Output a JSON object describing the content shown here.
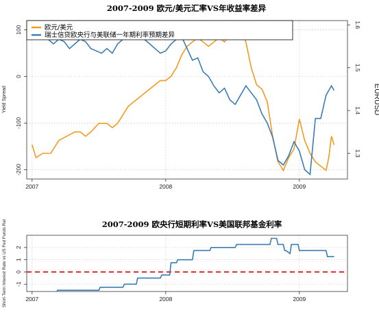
{
  "chart_data": [
    {
      "type": "line",
      "title": "2007-2009 欧元/美元汇率VS年收益率差异",
      "ylabel_left": "Yield Spread",
      "ylabel_right": "EURUSD",
      "x_ticks": [
        "2007",
        "2008",
        "2009"
      ],
      "y_left_ticks": [
        "-200",
        "-100",
        "0",
        "100"
      ],
      "y_right_ticks": [
        "1.3",
        "1.4",
        "1.5",
        "1.6"
      ],
      "ylim_left": [
        -220,
        120
      ],
      "ylim_right": [
        1.24,
        1.61
      ],
      "grid": true,
      "legend_position": "top-left",
      "colors": {
        "eurusd": "#f29a1e",
        "spread": "#3a7bb5"
      },
      "series": [
        {
          "name": "欧元/美元",
          "axis": "right",
          "x": [
            2007.0,
            2007.03,
            2007.08,
            2007.14,
            2007.2,
            2007.26,
            2007.32,
            2007.36,
            2007.4,
            2007.44,
            2007.5,
            2007.56,
            2007.6,
            2007.64,
            2007.68,
            2007.72,
            2007.76,
            2007.8,
            2007.84,
            2007.88,
            2007.92,
            2007.96,
            2008.0,
            2008.04,
            2008.08,
            2008.12,
            2008.16,
            2008.2,
            2008.24,
            2008.28,
            2008.32,
            2008.36,
            2008.4,
            2008.44,
            2008.48,
            2008.52,
            2008.56,
            2008.6,
            2008.64,
            2008.68,
            2008.72,
            2008.76,
            2008.8,
            2008.84,
            2008.88,
            2008.92,
            2008.96,
            2009.0,
            2009.04,
            2009.08,
            2009.12,
            2009.16,
            2009.2,
            2009.22,
            2009.24,
            2009.26
          ],
          "values": [
            1.32,
            1.29,
            1.3,
            1.3,
            1.33,
            1.34,
            1.35,
            1.35,
            1.34,
            1.35,
            1.37,
            1.37,
            1.36,
            1.37,
            1.39,
            1.41,
            1.42,
            1.43,
            1.44,
            1.45,
            1.46,
            1.47,
            1.47,
            1.48,
            1.5,
            1.53,
            1.55,
            1.56,
            1.57,
            1.56,
            1.55,
            1.56,
            1.57,
            1.56,
            1.58,
            1.59,
            1.59,
            1.56,
            1.5,
            1.46,
            1.45,
            1.42,
            1.34,
            1.28,
            1.26,
            1.29,
            1.31,
            1.38,
            1.33,
            1.3,
            1.28,
            1.27,
            1.26,
            1.29,
            1.34,
            1.32
          ]
        },
        {
          "name": "瑞士信贷欧央行与美联储一年期利率预期差异",
          "axis": "left",
          "x": [
            2007.0,
            2007.04,
            2007.08,
            2007.12,
            2007.16,
            2007.2,
            2007.24,
            2007.28,
            2007.32,
            2007.36,
            2007.4,
            2007.44,
            2007.48,
            2007.52,
            2007.56,
            2007.6,
            2007.64,
            2007.68,
            2007.72,
            2007.76,
            2007.8,
            2007.84,
            2007.88,
            2007.92,
            2007.96,
            2008.0,
            2008.04,
            2008.08,
            2008.12,
            2008.16,
            2008.2,
            2008.24,
            2008.28,
            2008.32,
            2008.36,
            2008.4,
            2008.44,
            2008.48,
            2008.52,
            2008.56,
            2008.6,
            2008.64,
            2008.68,
            2008.72,
            2008.76,
            2008.8,
            2008.84,
            2008.88,
            2008.92,
            2008.96,
            2009.0,
            2009.04,
            2009.08,
            2009.12,
            2009.16,
            2009.2,
            2009.24,
            2009.26
          ],
          "values": [
            100,
            85,
            80,
            80,
            70,
            80,
            75,
            60,
            70,
            80,
            75,
            60,
            55,
            50,
            60,
            50,
            70,
            80,
            95,
            105,
            100,
            80,
            70,
            60,
            50,
            55,
            70,
            80,
            85,
            60,
            35,
            40,
            10,
            0,
            -20,
            -35,
            -25,
            -50,
            -60,
            -40,
            -20,
            -35,
            -50,
            -80,
            -100,
            -130,
            -180,
            -190,
            -170,
            -140,
            -160,
            -200,
            -210,
            -90,
            -90,
            -40,
            -20,
            -30
          ]
        }
      ]
    },
    {
      "type": "line",
      "title": "2007-2009 欧央行短期利率VS美国联邦基金利率",
      "ylabel": "Short-Term Interest Rate vs US Fed Funds Rat",
      "x_ticks": [
        "2007",
        "2008",
        "2009"
      ],
      "y_ticks": [
        "-1",
        "0",
        "1",
        "2"
      ],
      "ylim": [
        -1.6,
        3.0
      ],
      "grid": true,
      "reference_line": {
        "value": 0,
        "color": "#e02020"
      },
      "colors": {
        "line": "#3a7bb5"
      },
      "series": [
        {
          "name": "",
          "x": [
            2007.0,
            2007.08,
            2007.18,
            2007.19,
            2007.5,
            2007.51,
            2007.68,
            2007.69,
            2007.78,
            2007.79,
            2007.96,
            2007.97,
            2008.03,
            2008.04,
            2008.08,
            2008.09,
            2008.2,
            2008.21,
            2008.33,
            2008.34,
            2008.52,
            2008.53,
            2008.78,
            2008.79,
            2008.83,
            2008.84,
            2008.88,
            2008.89,
            2008.9,
            2008.93,
            2008.94,
            2008.99,
            2009.0,
            2009.2,
            2009.21,
            2009.26
          ],
          "values": [
            -1.75,
            -1.75,
            -1.75,
            -1.5,
            -1.5,
            -1.25,
            -1.25,
            -1.0,
            -1.0,
            -0.5,
            -0.5,
            -0.25,
            -0.25,
            0.75,
            0.75,
            1.0,
            1.0,
            1.75,
            1.75,
            2.0,
            2.0,
            2.25,
            2.25,
            2.75,
            2.75,
            2.25,
            2.25,
            1.75,
            1.75,
            1.5,
            2.25,
            2.25,
            1.75,
            1.75,
            1.25,
            1.25
          ]
        }
      ]
    }
  ]
}
